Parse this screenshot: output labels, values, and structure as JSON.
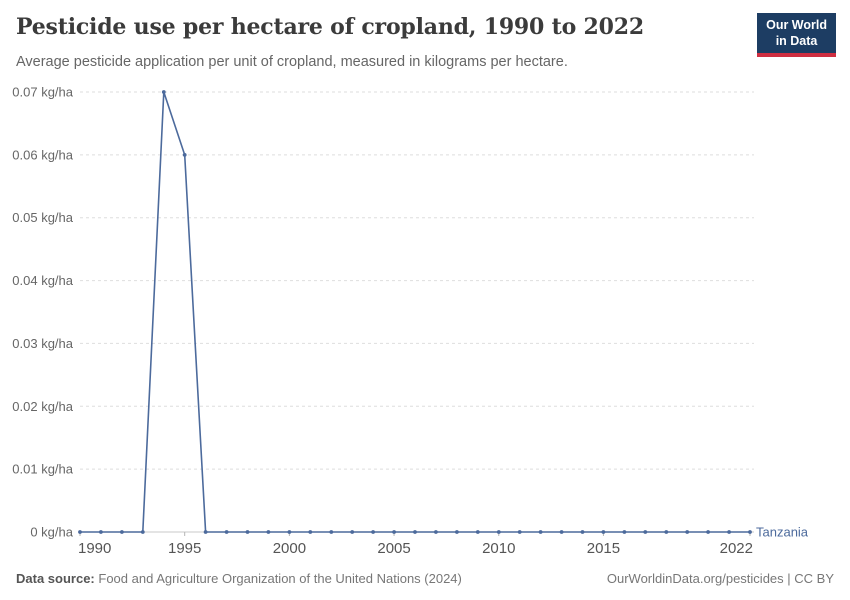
{
  "header": {
    "title": "Pesticide use per hectare of cropland, 1990 to 2022",
    "subtitle": "Average pesticide application per unit of cropland, measured in kilograms per hectare.",
    "logo": {
      "line1": "Our World",
      "line2": "in Data"
    }
  },
  "chart_data": {
    "type": "line",
    "title": "Pesticide use per hectare of cropland, 1990 to 2022",
    "xlabel": "",
    "ylabel": "kg/ha",
    "xlim": [
      1990,
      2022
    ],
    "ylim": [
      0,
      0.07
    ],
    "grid": "horizontal-dashed",
    "legend_position": "end-of-line",
    "x": [
      1990,
      1991,
      1992,
      1993,
      1994,
      1995,
      1996,
      1997,
      1998,
      1999,
      2000,
      2001,
      2002,
      2003,
      2004,
      2005,
      2006,
      2007,
      2008,
      2009,
      2010,
      2011,
      2012,
      2013,
      2014,
      2015,
      2016,
      2017,
      2018,
      2019,
      2020,
      2021,
      2022
    ],
    "series": [
      {
        "name": "Tanzania",
        "color": "#4C6A9C",
        "values": [
          0,
          0,
          0,
          0,
          0.07,
          0.06,
          0,
          0,
          0,
          0,
          0,
          0,
          0,
          0,
          0,
          0,
          0,
          0,
          0,
          0,
          0,
          0,
          0,
          0,
          0,
          0,
          0,
          0,
          0,
          0,
          0,
          0,
          0
        ]
      }
    ],
    "x_ticks": [
      {
        "value": 1990,
        "label": "1990"
      },
      {
        "value": 1995,
        "label": "1995"
      },
      {
        "value": 2000,
        "label": "2000"
      },
      {
        "value": 2005,
        "label": "2005"
      },
      {
        "value": 2010,
        "label": "2010"
      },
      {
        "value": 2015,
        "label": "2015"
      },
      {
        "value": 2022,
        "label": "2022"
      }
    ],
    "y_ticks": [
      {
        "value": 0,
        "label": "0 kg/ha"
      },
      {
        "value": 0.01,
        "label": "0.01 kg/ha"
      },
      {
        "value": 0.02,
        "label": "0.02 kg/ha"
      },
      {
        "value": 0.03,
        "label": "0.03 kg/ha"
      },
      {
        "value": 0.04,
        "label": "0.04 kg/ha"
      },
      {
        "value": 0.05,
        "label": "0.05 kg/ha"
      },
      {
        "value": 0.06,
        "label": "0.06 kg/ha"
      },
      {
        "value": 0.07,
        "label": "0.07 kg/ha"
      }
    ]
  },
  "colors": {
    "line": "#4C6A9C",
    "grid": "#dedede",
    "zero_axis": "#c8c8c8",
    "tick_mark": "#b5b5b5",
    "y_label": "#666666",
    "x_label": "#555555",
    "logo_bg": "#1d3d63",
    "logo_red": "#cf2e41"
  },
  "footer": {
    "source_label": "Data source:",
    "source_text": "Food and Agriculture Organization of the United Nations (2024)",
    "link": "OurWorldinData.org/pesticides | CC BY"
  }
}
